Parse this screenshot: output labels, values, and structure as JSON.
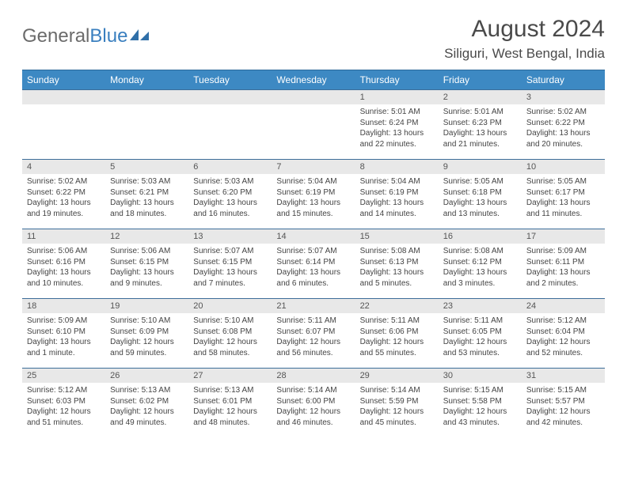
{
  "logo": {
    "text_gray": "General",
    "text_blue": "Blue"
  },
  "title": "August 2024",
  "location": "Siliguri, West Bengal, India",
  "colors": {
    "header_bg": "#3d89c3",
    "header_fg": "#ffffff",
    "daynum_bg": "#e8e8e8",
    "cell_border": "#3d6e9a",
    "text": "#444444"
  },
  "weekdays": [
    "Sunday",
    "Monday",
    "Tuesday",
    "Wednesday",
    "Thursday",
    "Friday",
    "Saturday"
  ],
  "weeks": [
    [
      null,
      null,
      null,
      null,
      {
        "n": "1",
        "sr": "5:01 AM",
        "ss": "6:24 PM",
        "dl": "13 hours and 22 minutes."
      },
      {
        "n": "2",
        "sr": "5:01 AM",
        "ss": "6:23 PM",
        "dl": "13 hours and 21 minutes."
      },
      {
        "n": "3",
        "sr": "5:02 AM",
        "ss": "6:22 PM",
        "dl": "13 hours and 20 minutes."
      }
    ],
    [
      {
        "n": "4",
        "sr": "5:02 AM",
        "ss": "6:22 PM",
        "dl": "13 hours and 19 minutes."
      },
      {
        "n": "5",
        "sr": "5:03 AM",
        "ss": "6:21 PM",
        "dl": "13 hours and 18 minutes."
      },
      {
        "n": "6",
        "sr": "5:03 AM",
        "ss": "6:20 PM",
        "dl": "13 hours and 16 minutes."
      },
      {
        "n": "7",
        "sr": "5:04 AM",
        "ss": "6:19 PM",
        "dl": "13 hours and 15 minutes."
      },
      {
        "n": "8",
        "sr": "5:04 AM",
        "ss": "6:19 PM",
        "dl": "13 hours and 14 minutes."
      },
      {
        "n": "9",
        "sr": "5:05 AM",
        "ss": "6:18 PM",
        "dl": "13 hours and 13 minutes."
      },
      {
        "n": "10",
        "sr": "5:05 AM",
        "ss": "6:17 PM",
        "dl": "13 hours and 11 minutes."
      }
    ],
    [
      {
        "n": "11",
        "sr": "5:06 AM",
        "ss": "6:16 PM",
        "dl": "13 hours and 10 minutes."
      },
      {
        "n": "12",
        "sr": "5:06 AM",
        "ss": "6:15 PM",
        "dl": "13 hours and 9 minutes."
      },
      {
        "n": "13",
        "sr": "5:07 AM",
        "ss": "6:15 PM",
        "dl": "13 hours and 7 minutes."
      },
      {
        "n": "14",
        "sr": "5:07 AM",
        "ss": "6:14 PM",
        "dl": "13 hours and 6 minutes."
      },
      {
        "n": "15",
        "sr": "5:08 AM",
        "ss": "6:13 PM",
        "dl": "13 hours and 5 minutes."
      },
      {
        "n": "16",
        "sr": "5:08 AM",
        "ss": "6:12 PM",
        "dl": "13 hours and 3 minutes."
      },
      {
        "n": "17",
        "sr": "5:09 AM",
        "ss": "6:11 PM",
        "dl": "13 hours and 2 minutes."
      }
    ],
    [
      {
        "n": "18",
        "sr": "5:09 AM",
        "ss": "6:10 PM",
        "dl": "13 hours and 1 minute."
      },
      {
        "n": "19",
        "sr": "5:10 AM",
        "ss": "6:09 PM",
        "dl": "12 hours and 59 minutes."
      },
      {
        "n": "20",
        "sr": "5:10 AM",
        "ss": "6:08 PM",
        "dl": "12 hours and 58 minutes."
      },
      {
        "n": "21",
        "sr": "5:11 AM",
        "ss": "6:07 PM",
        "dl": "12 hours and 56 minutes."
      },
      {
        "n": "22",
        "sr": "5:11 AM",
        "ss": "6:06 PM",
        "dl": "12 hours and 55 minutes."
      },
      {
        "n": "23",
        "sr": "5:11 AM",
        "ss": "6:05 PM",
        "dl": "12 hours and 53 minutes."
      },
      {
        "n": "24",
        "sr": "5:12 AM",
        "ss": "6:04 PM",
        "dl": "12 hours and 52 minutes."
      }
    ],
    [
      {
        "n": "25",
        "sr": "5:12 AM",
        "ss": "6:03 PM",
        "dl": "12 hours and 51 minutes."
      },
      {
        "n": "26",
        "sr": "5:13 AM",
        "ss": "6:02 PM",
        "dl": "12 hours and 49 minutes."
      },
      {
        "n": "27",
        "sr": "5:13 AM",
        "ss": "6:01 PM",
        "dl": "12 hours and 48 minutes."
      },
      {
        "n": "28",
        "sr": "5:14 AM",
        "ss": "6:00 PM",
        "dl": "12 hours and 46 minutes."
      },
      {
        "n": "29",
        "sr": "5:14 AM",
        "ss": "5:59 PM",
        "dl": "12 hours and 45 minutes."
      },
      {
        "n": "30",
        "sr": "5:15 AM",
        "ss": "5:58 PM",
        "dl": "12 hours and 43 minutes."
      },
      {
        "n": "31",
        "sr": "5:15 AM",
        "ss": "5:57 PM",
        "dl": "12 hours and 42 minutes."
      }
    ]
  ],
  "labels": {
    "sunrise": "Sunrise:",
    "sunset": "Sunset:",
    "daylight": "Daylight:"
  }
}
